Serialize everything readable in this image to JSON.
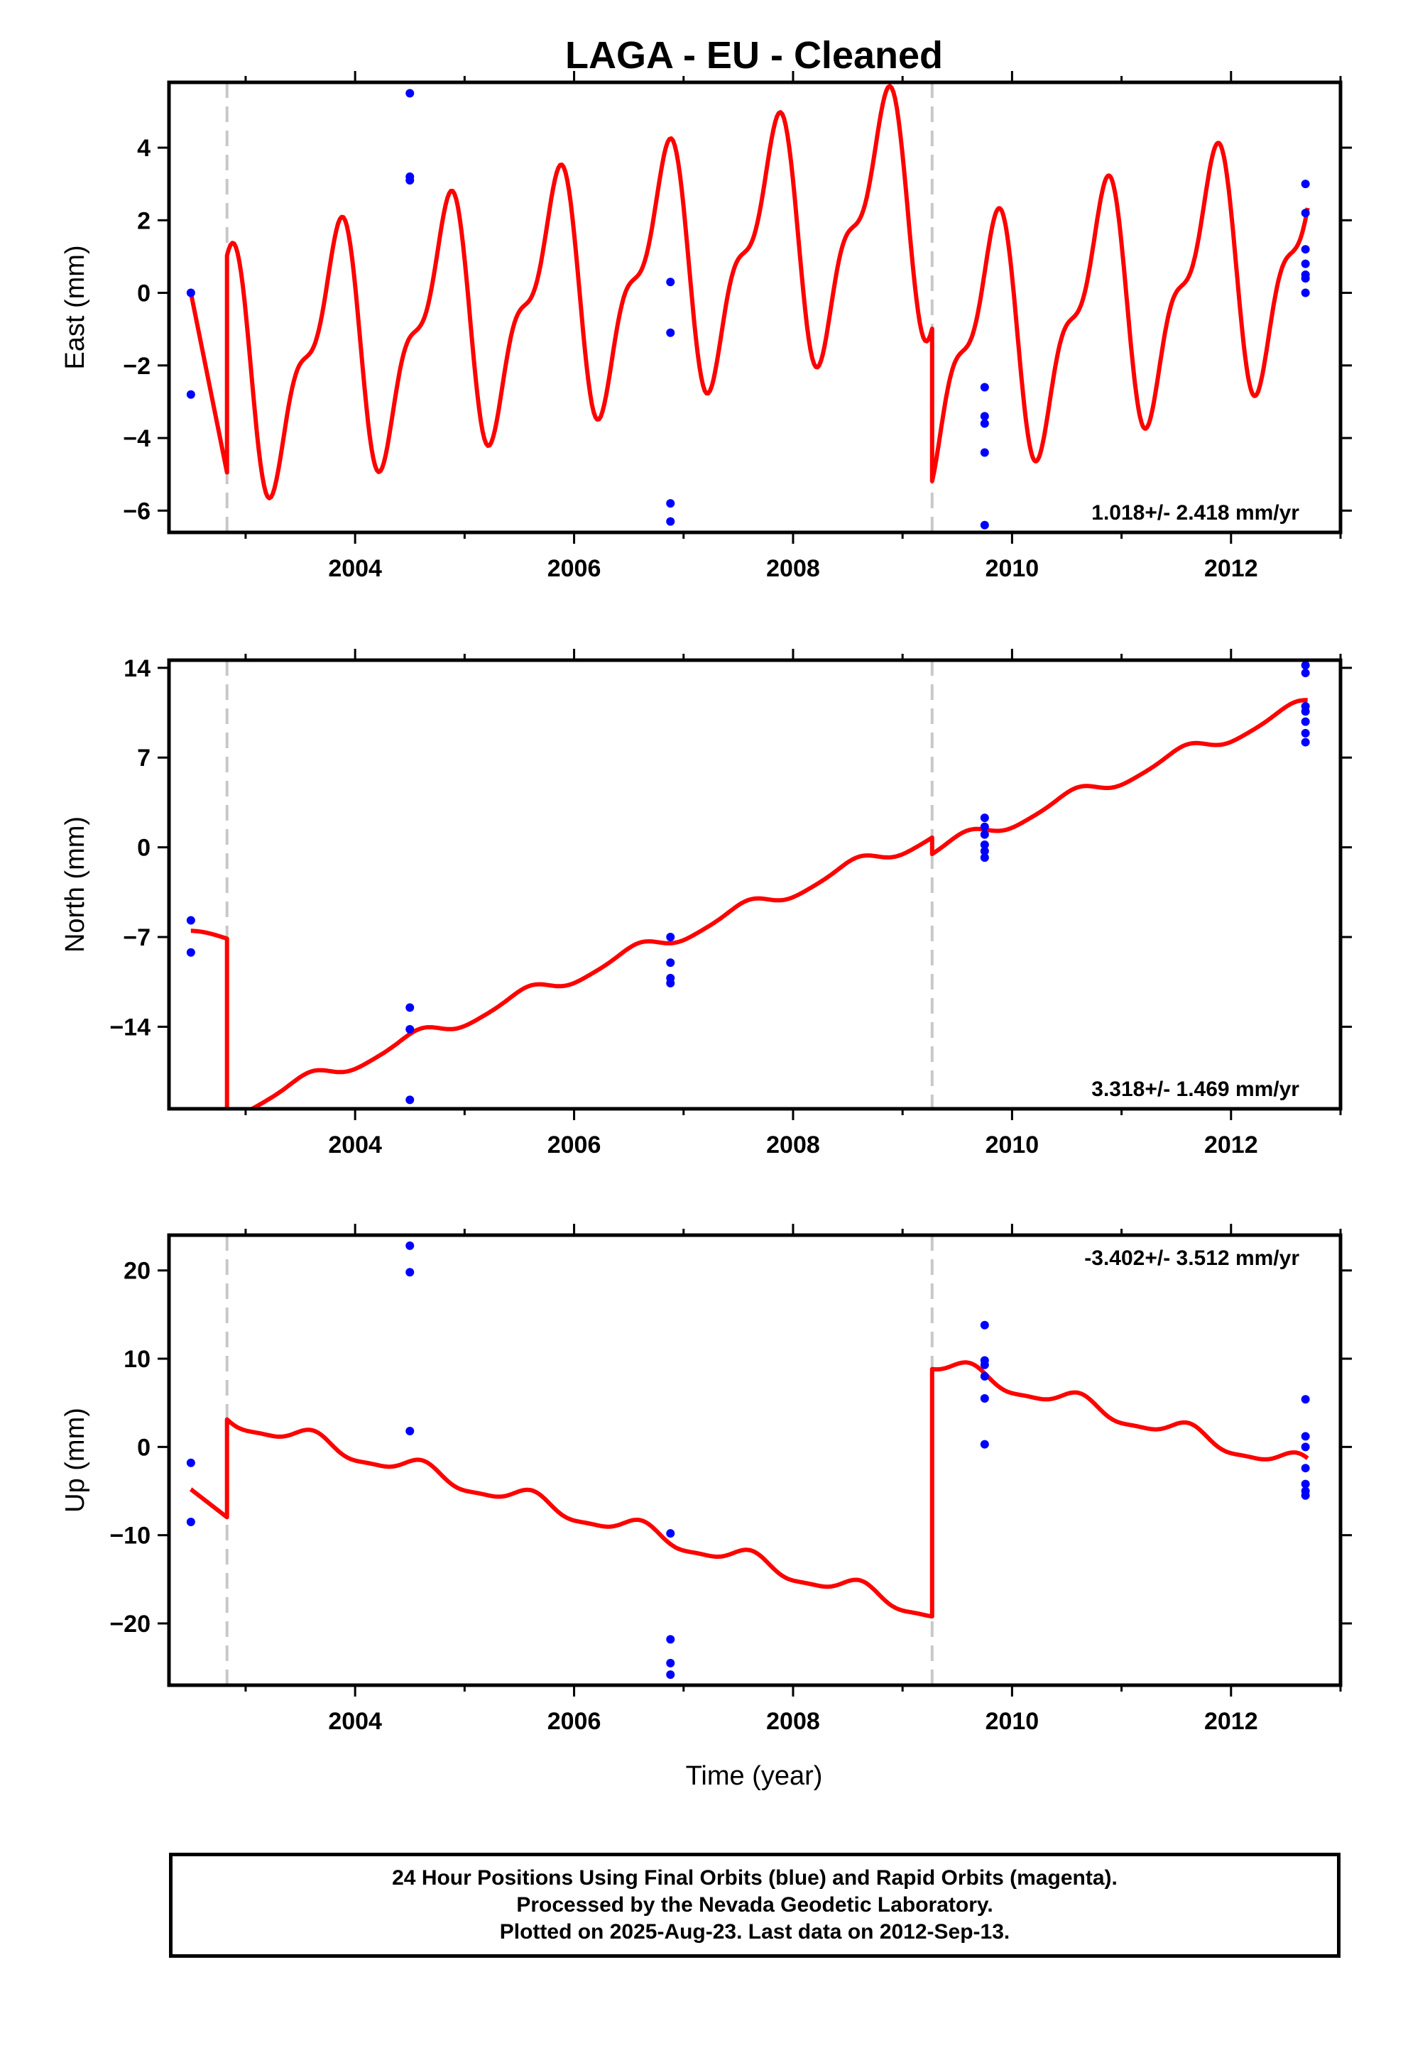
{
  "title": "LAGA  - EU - Cleaned",
  "xlabel": "Time (year)",
  "colors": {
    "model": "#ff0000",
    "final_orbits": "#0000ff",
    "offset_lines": "#c8c8c8"
  },
  "footer": {
    "line1": "24 Hour Positions Using Final Orbits (blue) and Rapid Orbits (magenta).",
    "line2": "Processed by the Nevada Geodetic Laboratory.",
    "line3": "Plotted on 2025-Aug-23. Last data on 2012-Sep-13."
  },
  "chart_data": [
    {
      "type": "scatter",
      "id": "east",
      "ylabel": "East (mm)",
      "rate_label": "1.018+/- 2.418 mm/yr",
      "xlim": [
        2002.3,
        2013.0
      ],
      "ylim": [
        -6.6,
        5.8
      ],
      "xticks": [
        2004,
        2006,
        2008,
        2010,
        2012
      ],
      "yticks": [
        -6,
        -4,
        -2,
        0,
        2,
        4
      ],
      "offsets": [
        2002.83,
        2009.27
      ],
      "points": [
        [
          2002.5,
          0.0
        ],
        [
          2002.5,
          -2.8
        ],
        [
          2004.5,
          5.5
        ],
        [
          2004.5,
          3.2
        ],
        [
          2004.5,
          3.1
        ],
        [
          2006.88,
          0.3
        ],
        [
          2006.88,
          -1.1
        ],
        [
          2006.88,
          -5.8
        ],
        [
          2006.88,
          -6.3
        ],
        [
          2009.75,
          -2.6
        ],
        [
          2009.75,
          -3.4
        ],
        [
          2009.75,
          -3.6
        ],
        [
          2009.75,
          -4.4
        ],
        [
          2009.75,
          -6.4
        ],
        [
          2012.68,
          3.0
        ],
        [
          2012.68,
          2.2
        ],
        [
          2012.68,
          1.2
        ],
        [
          2012.68,
          0.8
        ],
        [
          2012.68,
          0.5
        ],
        [
          2012.68,
          0.4
        ],
        [
          2012.68,
          0.0
        ]
      ],
      "model": {
        "segments": [
          {
            "t0": 2002.5,
            "t1": 2002.83,
            "ref": 2002.5,
            "a": 0.0,
            "b": -15.0,
            "annual": 0.0,
            "semi": 0.0
          },
          {
            "t0": 2002.83,
            "t1": 2009.27,
            "ref": 2006.05,
            "a": 0.02,
            "b": 0.72,
            "annual": 2.9,
            "semi": 1.3
          },
          {
            "t0": 2009.27,
            "t1": 2012.7,
            "ref": 2011.0,
            "a": -0.3,
            "b": 0.9,
            "annual": 2.9,
            "semi": 1.3
          }
        ],
        "annual_phase": 0.55,
        "semi_phase": 0.3
      }
    },
    {
      "type": "scatter",
      "id": "north",
      "ylabel": "North (mm)",
      "rate_label": "3.318+/- 1.469 mm/yr",
      "xlim": [
        2002.3,
        2013.0
      ],
      "ylim": [
        -20.4,
        14.6
      ],
      "xticks": [
        2004,
        2006,
        2008,
        2010,
        2012
      ],
      "yticks": [
        -14,
        -7,
        0,
        7,
        14
      ],
      "offsets": [
        2002.83,
        2009.27
      ],
      "points": [
        [
          2002.5,
          -5.7
        ],
        [
          2002.5,
          -8.2
        ],
        [
          2004.5,
          -12.5
        ],
        [
          2004.5,
          -14.2
        ],
        [
          2004.5,
          -19.7
        ],
        [
          2006.88,
          -7.0
        ],
        [
          2006.88,
          -9.0
        ],
        [
          2006.88,
          -10.2
        ],
        [
          2006.88,
          -10.6
        ],
        [
          2009.75,
          2.3
        ],
        [
          2009.75,
          1.6
        ],
        [
          2009.75,
          1.0
        ],
        [
          2009.75,
          0.2
        ],
        [
          2009.75,
          -0.3
        ],
        [
          2009.75,
          -0.8
        ],
        [
          2012.68,
          14.2
        ],
        [
          2012.68,
          13.6
        ],
        [
          2012.68,
          11.0
        ],
        [
          2012.68,
          10.6
        ],
        [
          2012.68,
          9.8
        ],
        [
          2012.68,
          8.9
        ],
        [
          2012.68,
          8.2
        ]
      ],
      "model": {
        "segments": [
          {
            "t0": 2002.5,
            "t1": 2002.83,
            "ref": 2002.5,
            "a": -6.8,
            "b": -0.8,
            "annual": 0.3,
            "semi": 0.0
          },
          {
            "t0": 2002.83,
            "t1": 2009.27,
            "ref": 2006.05,
            "a": -9.9,
            "b": 3.35,
            "annual": 0.55,
            "semi": 0.1
          },
          {
            "t0": 2009.27,
            "t1": 2012.7,
            "ref": 2011.0,
            "a": 5.4,
            "b": 3.35,
            "annual": 0.55,
            "semi": 0.1
          }
        ],
        "annual_phase": 0.3,
        "semi_phase": 0.0
      }
    },
    {
      "type": "scatter",
      "id": "up",
      "ylabel": "Up (mm)",
      "rate_label": "-3.402+/- 3.512 mm/yr",
      "xlim": [
        2002.3,
        2013.0
      ],
      "ylim": [
        -27.0,
        24.0
      ],
      "xticks": [
        2004,
        2006,
        2008,
        2010,
        2012
      ],
      "yticks": [
        -20,
        -10,
        0,
        10,
        20
      ],
      "offsets": [
        2002.83,
        2009.27
      ],
      "points": [
        [
          2002.5,
          -1.8
        ],
        [
          2002.5,
          -8.5
        ],
        [
          2004.5,
          22.8
        ],
        [
          2004.5,
          19.8
        ],
        [
          2004.5,
          1.8
        ],
        [
          2006.88,
          -9.8
        ],
        [
          2006.88,
          -21.8
        ],
        [
          2006.88,
          -24.5
        ],
        [
          2006.88,
          -25.8
        ],
        [
          2009.75,
          13.8
        ],
        [
          2009.75,
          9.8
        ],
        [
          2009.75,
          9.3
        ],
        [
          2009.75,
          8.0
        ],
        [
          2009.75,
          5.5
        ],
        [
          2009.75,
          0.3
        ],
        [
          2012.68,
          5.4
        ],
        [
          2012.68,
          1.2
        ],
        [
          2012.68,
          0.0
        ],
        [
          2012.68,
          -2.4
        ],
        [
          2012.68,
          -4.2
        ],
        [
          2012.68,
          -5.0
        ],
        [
          2012.68,
          -5.5
        ]
      ],
      "model": {
        "segments": [
          {
            "t0": 2002.5,
            "t1": 2002.83,
            "ref": 2002.5,
            "a": -4.8,
            "b": -9.6,
            "annual": 0.0,
            "semi": 0.0
          },
          {
            "t0": 2002.83,
            "t1": 2009.27,
            "ref": 2006.05,
            "a": -7.7,
            "b": -3.4,
            "annual": 1.0,
            "semi": 0.3
          },
          {
            "t0": 2009.27,
            "t1": 2012.7,
            "ref": 2011.0,
            "a": 3.5,
            "b": -3.4,
            "annual": 1.0,
            "semi": 0.3
          }
        ],
        "annual_phase": 0.35,
        "semi_phase": 0.0
      }
    }
  ]
}
